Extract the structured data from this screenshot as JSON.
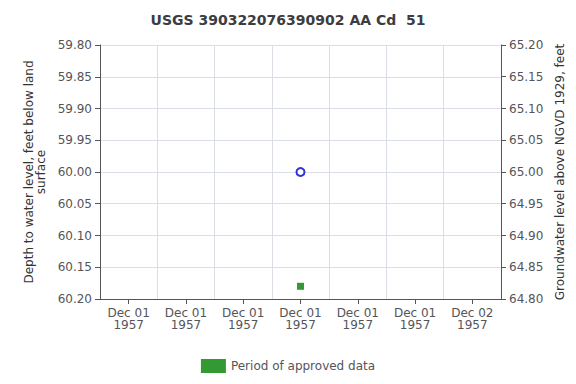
{
  "chart_data": {
    "type": "scatter",
    "title": "USGS 390322076390902 AA Cd  51",
    "ylabel": "Depth to water level, feet below land\nsurface",
    "y2label": "Groundwater level above NGVD 1929, feet",
    "categories": [
      "Dec 01\n1957",
      "Dec 01\n1957",
      "Dec 01\n1957",
      "Dec 01\n1957",
      "Dec 01\n1957",
      "Dec 01\n1957",
      "Dec 02\n1957"
    ],
    "series": [
      {
        "color": "#0000cc",
        "marker": "open circle",
        "values": [
          null,
          null,
          null,
          60.0,
          null,
          null,
          null
        ]
      },
      {
        "name": "Period of approved data",
        "color": "#008000",
        "marker": "square",
        "values": [
          null,
          null,
          null,
          60.18,
          null,
          null,
          null
        ]
      }
    ],
    "ylim": [
      60.2,
      59.8
    ],
    "yticks": [
      {
        "value": 59.8,
        "label": "59.80"
      },
      {
        "value": 59.85,
        "label": "59.85"
      },
      {
        "value": 59.9,
        "label": "59.90"
      },
      {
        "value": 59.95,
        "label": "59.95"
      },
      {
        "value": 60.0,
        "label": "60.00"
      },
      {
        "value": 60.05,
        "label": "60.05"
      },
      {
        "value": 60.1,
        "label": "60.10"
      },
      {
        "value": 60.15,
        "label": "60.15"
      },
      {
        "value": 60.2,
        "label": "60.20"
      }
    ],
    "y2lim": [
      64.8,
      65.2
    ],
    "y2ticks": [
      {
        "value": 65.2,
        "label": "65.20"
      },
      {
        "value": 65.15,
        "label": "65.15"
      },
      {
        "value": 65.1,
        "label": "65.10"
      },
      {
        "value": 65.05,
        "label": "65.05"
      },
      {
        "value": 65.0,
        "label": "65.00"
      },
      {
        "value": 64.95,
        "label": "64.95"
      },
      {
        "value": 64.9,
        "label": "64.90"
      },
      {
        "value": 64.85,
        "label": "64.85"
      },
      {
        "value": 64.8,
        "label": "64.80"
      }
    ],
    "grid": true,
    "legend": "bottom"
  }
}
